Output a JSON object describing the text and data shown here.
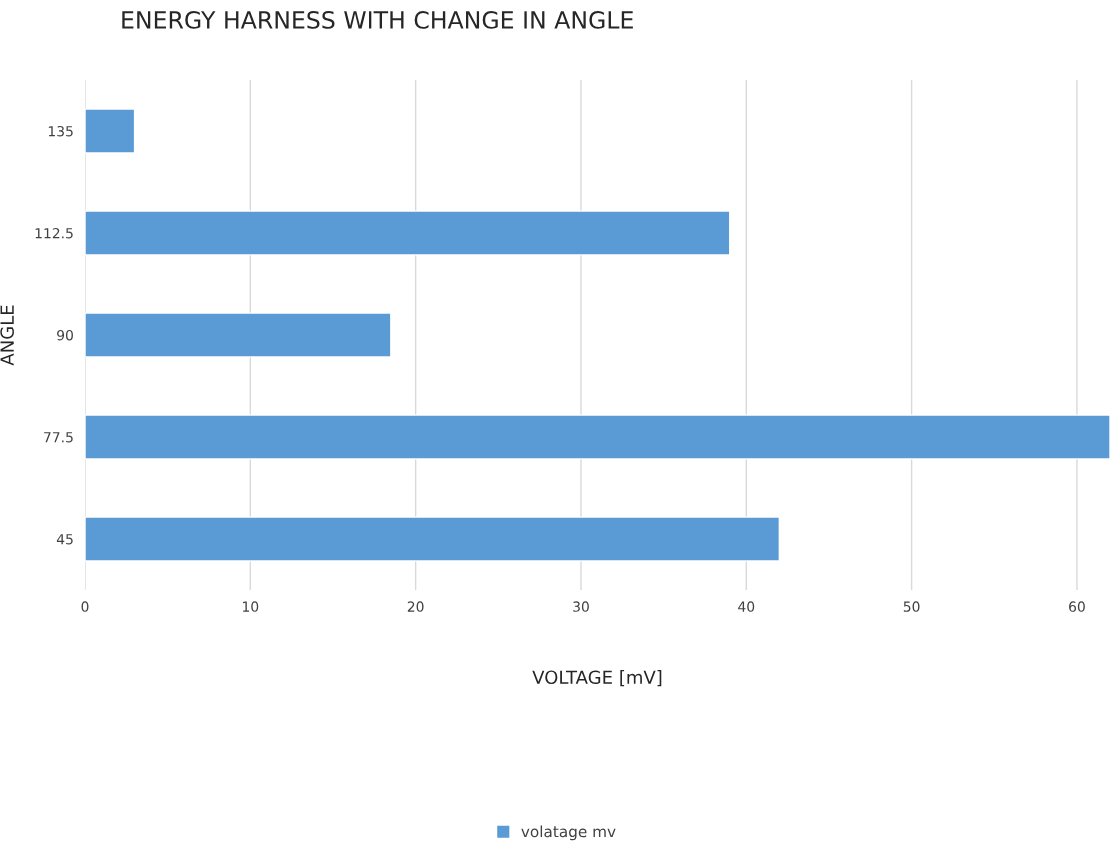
{
  "chart_data": {
    "type": "bar",
    "orientation": "horizontal",
    "title": "ENERGY HARNESS WITH CHANGE IN ANGLE",
    "xlabel": "VOLTAGE [mV]",
    "ylabel": "ANGLE",
    "categories": [
      "135",
      "112.5",
      "90",
      "77.5",
      "45"
    ],
    "series": [
      {
        "name": "volatage mv",
        "color": "#5b9bd5",
        "values": [
          3,
          39,
          18.5,
          62,
          42
        ]
      }
    ],
    "xlim": [
      0,
      62
    ],
    "xticks": [
      0,
      10,
      20,
      30,
      40,
      50,
      60
    ],
    "grid": "x",
    "legend": "bottom"
  }
}
